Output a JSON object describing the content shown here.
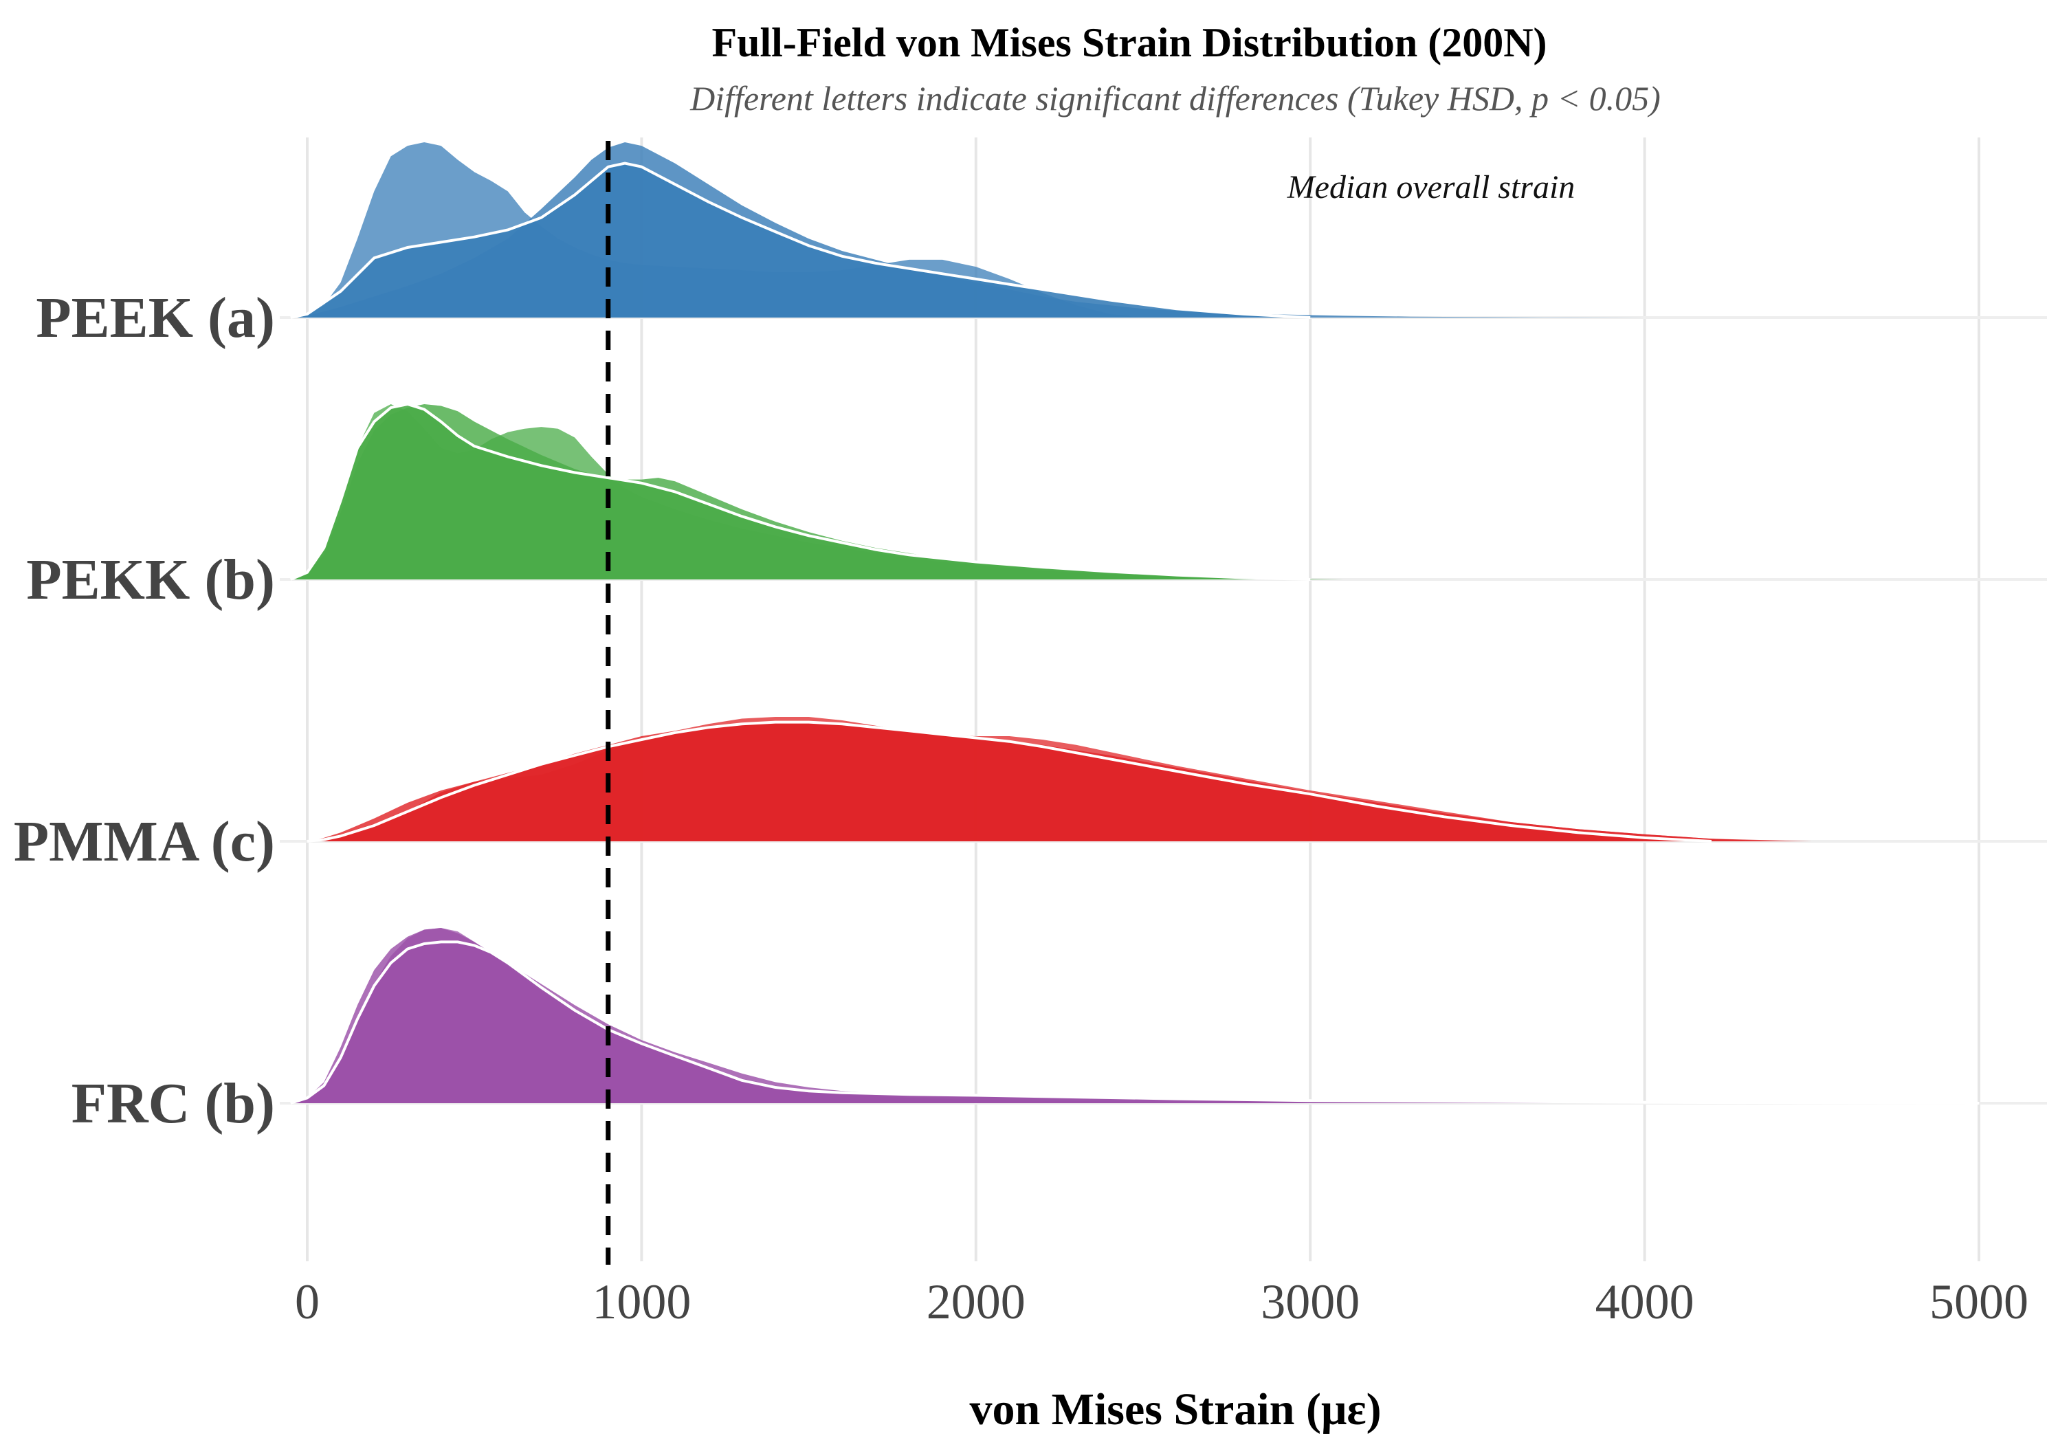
{
  "chart_data": {
    "type": "ridgeline",
    "title": "Full-Field von Mises Strain Distribution (200N)",
    "subtitle": "Different letters indicate significant differences (Tukey HSD, p < 0.05)",
    "xlabel": "von Mises Strain (με)",
    "ylabel": "",
    "xlim": [
      -50,
      5200
    ],
    "x_ticks": [
      0,
      1000,
      2000,
      3000,
      4000,
      5000
    ],
    "x_tick_labels": [
      "0",
      "1000",
      "2000",
      "3000",
      "4000",
      "5000"
    ],
    "grid": "vertical",
    "reference_line": {
      "x": 900,
      "style": "dashed",
      "label": "Median overall strain"
    },
    "series": [
      {
        "name": "PEEK (a)",
        "color": "#3a7eb8",
        "densities": [
          {
            "x": [
              -50,
              0,
              50,
              100,
              150,
              200,
              250,
              300,
              350,
              400,
              450,
              500,
              550,
              600,
              650,
              700,
              750,
              800,
              850,
              900,
              950,
              1000,
              1100,
              1200,
              1300,
              1400,
              1500,
              1600,
              1700,
              1800,
              1900,
              2000,
              2100,
              2200,
              2300,
              2400,
              2500
            ],
            "y": [
              0,
              0.02,
              0.07,
              0.2,
              0.45,
              0.72,
              0.92,
              0.98,
              1.0,
              0.98,
              0.9,
              0.83,
              0.78,
              0.72,
              0.6,
              0.52,
              0.45,
              0.4,
              0.36,
              0.33,
              0.31,
              0.3,
              0.29,
              0.28,
              0.27,
              0.26,
              0.26,
              0.27,
              0.3,
              0.33,
              0.33,
              0.29,
              0.22,
              0.14,
              0.07,
              0.02,
              0
            ]
          },
          {
            "x": [
              -50,
              0,
              100,
              200,
              300,
              400,
              500,
              600,
              700,
              800,
              850,
              900,
              950,
              1000,
              1100,
              1200,
              1300,
              1400,
              1500,
              1600,
              1700,
              1800,
              1900,
              2000,
              2100,
              2200,
              2300,
              2400,
              2500,
              2700,
              2900,
              3100,
              3300,
              3500,
              3700,
              4000
            ],
            "y": [
              0,
              0.01,
              0.06,
              0.12,
              0.18,
              0.25,
              0.34,
              0.45,
              0.62,
              0.8,
              0.9,
              0.97,
              1.0,
              0.98,
              0.88,
              0.76,
              0.64,
              0.54,
              0.45,
              0.38,
              0.33,
              0.28,
              0.24,
              0.2,
              0.16,
              0.12,
              0.09,
              0.07,
              0.05,
              0.03,
              0.018,
              0.01,
              0.005,
              0.003,
              0.001,
              0
            ]
          },
          {
            "x": [
              -50,
              0,
              100,
              200,
              300,
              400,
              500,
              600,
              700,
              800,
              900,
              950,
              1000,
              1100,
              1200,
              1300,
              1400,
              1500,
              1600,
              1700,
              1800,
              1900,
              2000,
              2100,
              2200,
              2400,
              2600,
              2800,
              3000
            ],
            "y": [
              0,
              0.02,
              0.15,
              0.34,
              0.4,
              0.43,
              0.46,
              0.5,
              0.57,
              0.7,
              0.86,
              0.88,
              0.86,
              0.76,
              0.66,
              0.57,
              0.49,
              0.41,
              0.35,
              0.31,
              0.28,
              0.25,
              0.22,
              0.19,
              0.16,
              0.1,
              0.05,
              0.02,
              0
            ]
          }
        ]
      },
      {
        "name": "PEKK (b)",
        "color": "#4aac48",
        "densities": [
          {
            "x": [
              -50,
              0,
              50,
              100,
              150,
              200,
              250,
              300,
              350,
              400,
              450,
              500,
              550,
              600,
              650,
              700,
              750,
              800,
              850,
              900,
              950,
              1000,
              1100,
              1200,
              1300,
              1400,
              1500,
              1600,
              1700,
              1800,
              1900,
              2000,
              2200,
              2400,
              2600,
              2800,
              3100
            ],
            "y": [
              0,
              0.04,
              0.18,
              0.45,
              0.75,
              0.95,
              1.0,
              0.96,
              0.86,
              0.75,
              0.72,
              0.74,
              0.8,
              0.84,
              0.86,
              0.87,
              0.86,
              0.81,
              0.7,
              0.6,
              0.52,
              0.47,
              0.4,
              0.34,
              0.29,
              0.25,
              0.21,
              0.18,
              0.15,
              0.12,
              0.1,
              0.08,
              0.05,
              0.03,
              0.02,
              0.01,
              0
            ]
          },
          {
            "x": [
              -50,
              0,
              50,
              100,
              150,
              200,
              250,
              300,
              350,
              400,
              450,
              500,
              600,
              700,
              800,
              900,
              1000,
              1050,
              1100,
              1200,
              1300,
              1400,
              1500,
              1600,
              1700,
              1800,
              1900,
              2000,
              2200,
              2400,
              2600,
              2800,
              3000
            ],
            "y": [
              0,
              0.04,
              0.14,
              0.38,
              0.66,
              0.85,
              0.94,
              0.98,
              1.0,
              0.99,
              0.96,
              0.9,
              0.8,
              0.71,
              0.63,
              0.57,
              0.57,
              0.58,
              0.56,
              0.48,
              0.4,
              0.33,
              0.27,
              0.22,
              0.18,
              0.15,
              0.12,
              0.1,
              0.06,
              0.035,
              0.02,
              0.008,
              0
            ]
          },
          {
            "x": [
              -50,
              0,
              50,
              100,
              150,
              200,
              250,
              300,
              350,
              400,
              450,
              500,
              600,
              700,
              800,
              900,
              1000,
              1100,
              1200,
              1300,
              1400,
              1500,
              1600,
              1700,
              1800,
              2000,
              2200,
              2400,
              2600,
              2800,
              3000
            ],
            "y": [
              0,
              0.04,
              0.18,
              0.45,
              0.75,
              0.9,
              0.98,
              1.0,
              0.97,
              0.9,
              0.82,
              0.76,
              0.7,
              0.65,
              0.61,
              0.58,
              0.55,
              0.5,
              0.43,
              0.36,
              0.3,
              0.25,
              0.21,
              0.17,
              0.14,
              0.1,
              0.07,
              0.045,
              0.025,
              0.01,
              0
            ]
          }
        ]
      },
      {
        "name": "PMMA (c)",
        "color": "#e02528",
        "densities": [
          {
            "x": [
              0,
              50,
              100,
              200,
              300,
              400,
              500,
              600,
              700,
              800,
              900,
              1000,
              1100,
              1200,
              1300,
              1400,
              1500,
              1600,
              1700,
              1800,
              1900,
              2000,
              2100,
              2200,
              2300,
              2400,
              2500,
              2600,
              2800,
              3000,
              3200,
              3400,
              3600,
              3800,
              4000,
              4200,
              4500
            ],
            "y": [
              0,
              0.01,
              0.04,
              0.1,
              0.17,
              0.28,
              0.34,
              0.36,
              0.38,
              0.44,
              0.52,
              0.58,
              0.63,
              0.67,
              0.7,
              0.71,
              0.71,
              0.69,
              0.66,
              0.63,
              0.61,
              0.6,
              0.6,
              0.58,
              0.55,
              0.51,
              0.47,
              0.43,
              0.36,
              0.29,
              0.23,
              0.17,
              0.11,
              0.07,
              0.04,
              0.015,
              0
            ]
          },
          {
            "x": [
              0,
              50,
              100,
              200,
              300,
              400,
              500,
              600,
              700,
              800,
              900,
              1000,
              1100,
              1200,
              1300,
              1400,
              1500,
              1600,
              1700,
              1800,
              1900,
              2000,
              2100,
              2200,
              2300,
              2400,
              2600,
              2800,
              3000,
              3200,
              3400,
              3600,
              3800,
              4000,
              4200,
              4400
            ],
            "y": [
              0,
              0.02,
              0.05,
              0.13,
              0.22,
              0.29,
              0.34,
              0.39,
              0.44,
              0.5,
              0.55,
              0.6,
              0.63,
              0.65,
              0.67,
              0.68,
              0.68,
              0.67,
              0.65,
              0.63,
              0.61,
              0.59,
              0.57,
              0.55,
              0.52,
              0.49,
              0.42,
              0.35,
              0.28,
              0.22,
              0.16,
              0.11,
              0.07,
              0.04,
              0.015,
              0
            ]
          },
          {
            "x": [
              0,
              50,
              100,
              200,
              300,
              400,
              500,
              600,
              700,
              800,
              900,
              1000,
              1100,
              1200,
              1300,
              1400,
              1500,
              1600,
              1700,
              1800,
              1900,
              2000,
              2100,
              2200,
              2400,
              2600,
              2800,
              3000,
              3200,
              3400,
              3600,
              3800,
              4000,
              4200
            ],
            "y": [
              0,
              0.01,
              0.03,
              0.09,
              0.17,
              0.25,
              0.32,
              0.38,
              0.44,
              0.49,
              0.54,
              0.58,
              0.62,
              0.65,
              0.67,
              0.68,
              0.68,
              0.67,
              0.65,
              0.63,
              0.61,
              0.59,
              0.57,
              0.54,
              0.47,
              0.4,
              0.33,
              0.27,
              0.2,
              0.14,
              0.09,
              0.05,
              0.02,
              0
            ]
          }
        ]
      },
      {
        "name": "FRC (b)",
        "color": "#9b51a8",
        "densities": [
          {
            "x": [
              -50,
              0,
              50,
              100,
              150,
              200,
              250,
              300,
              350,
              400,
              450,
              500,
              550,
              600,
              700,
              800,
              900,
              1000,
              1100,
              1200,
              1300,
              1400,
              1500,
              1600,
              1800,
              2000,
              2200,
              2400,
              2600,
              2800,
              3000,
              3200,
              3500
            ],
            "y": [
              0,
              0.03,
              0.1,
              0.26,
              0.48,
              0.68,
              0.84,
              0.94,
              0.99,
              1.0,
              0.98,
              0.92,
              0.85,
              0.78,
              0.64,
              0.52,
              0.41,
              0.33,
              0.27,
              0.2,
              0.14,
              0.1,
              0.07,
              0.05,
              0.03,
              0.02,
              0.015,
              0.01,
              0.006,
              0.004,
              0.002,
              0.001,
              0
            ]
          },
          {
            "x": [
              -50,
              0,
              50,
              100,
              150,
              200,
              250,
              300,
              350,
              400,
              450,
              500,
              550,
              600,
              700,
              800,
              900,
              1000,
              1100,
              1200,
              1300,
              1400,
              1500,
              1600,
              1800,
              2000,
              2300,
              2600,
              3000,
              3500,
              4000,
              4500,
              5000
            ],
            "y": [
              0,
              0.03,
              0.12,
              0.32,
              0.56,
              0.76,
              0.88,
              0.95,
              0.99,
              1.0,
              0.97,
              0.92,
              0.86,
              0.8,
              0.68,
              0.56,
              0.45,
              0.36,
              0.29,
              0.23,
              0.17,
              0.12,
              0.09,
              0.07,
              0.05,
              0.04,
              0.03,
              0.022,
              0.015,
              0.01,
              0.006,
              0.003,
              0
            ]
          },
          {
            "x": [
              -50,
              0,
              50,
              100,
              150,
              200,
              250,
              300,
              350,
              400,
              450,
              500,
              550,
              600,
              700,
              800,
              900,
              1000,
              1100,
              1200,
              1300,
              1400,
              1500,
              1600,
              1800,
              2000,
              2300,
              2600,
              3000,
              3500,
              4000,
              4500,
              5000
            ],
            "y": [
              0,
              0.03,
              0.1,
              0.26,
              0.48,
              0.67,
              0.8,
              0.88,
              0.91,
              0.92,
              0.92,
              0.9,
              0.86,
              0.8,
              0.66,
              0.53,
              0.42,
              0.34,
              0.27,
              0.2,
              0.13,
              0.09,
              0.07,
              0.06,
              0.05,
              0.045,
              0.035,
              0.025,
              0.015,
              0.01,
              0.005,
              0.002,
              0
            ]
          }
        ]
      }
    ]
  }
}
